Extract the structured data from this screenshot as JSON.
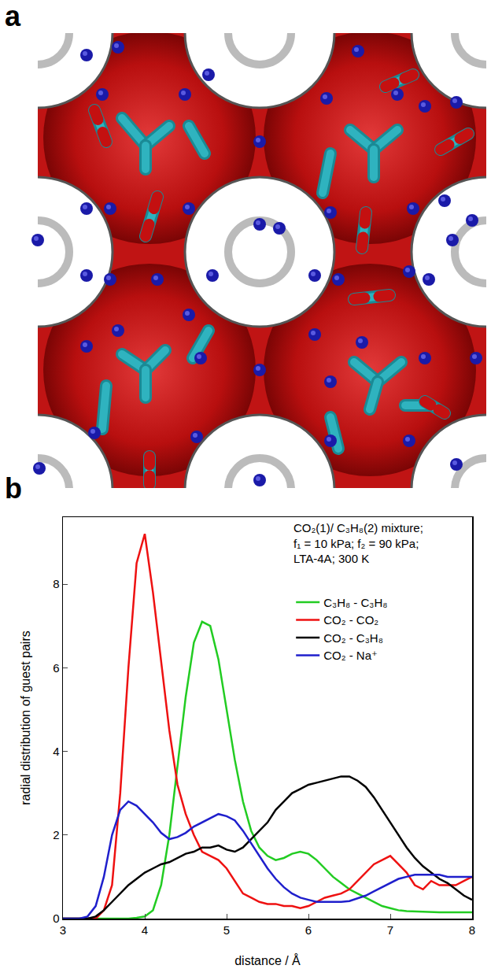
{
  "image_panel": {
    "label": "a"
  },
  "chart_data": {
    "panel_label": "b",
    "type": "line",
    "annotation": [
      "CO₂(1)/ C₃H₈(2) mixture;",
      "f₁ = 10 kPa; f₂ = 90 kPa;",
      "LTA-4A; 300 K"
    ],
    "x_label": "distance / Å",
    "y_label": "radial distribution of guest pairs",
    "xlim": [
      3,
      8
    ],
    "xticks": [
      3,
      4,
      5,
      6,
      7,
      8
    ],
    "ylim": [
      0,
      9.6
    ],
    "yticks": [
      0,
      2,
      4,
      6,
      8
    ],
    "grid": false,
    "legend": "top-right",
    "x": [
      3.0,
      3.1,
      3.2,
      3.3,
      3.4,
      3.5,
      3.6,
      3.7,
      3.8,
      3.9,
      4.0,
      4.1,
      4.2,
      4.3,
      4.4,
      4.5,
      4.6,
      4.7,
      4.8,
      4.9,
      5.0,
      5.1,
      5.2,
      5.3,
      5.4,
      5.5,
      5.6,
      5.7,
      5.8,
      5.9,
      6.0,
      6.1,
      6.2,
      6.3,
      6.4,
      6.5,
      6.6,
      6.7,
      6.8,
      6.9,
      7.0,
      7.1,
      7.2,
      7.3,
      7.4,
      7.5,
      7.6,
      7.7,
      7.8,
      7.9,
      8.0
    ],
    "series": [
      {
        "name": "C₃H₈ - C₃H₈",
        "color": "#22cc22",
        "values": [
          0,
          0,
          0,
          0,
          0,
          0,
          0,
          0,
          0,
          0.02,
          0.05,
          0.2,
          0.8,
          2.0,
          3.6,
          5.3,
          6.6,
          7.1,
          7.0,
          6.2,
          5.0,
          3.8,
          2.8,
          2.1,
          1.7,
          1.5,
          1.4,
          1.45,
          1.55,
          1.6,
          1.55,
          1.4,
          1.2,
          1.0,
          0.85,
          0.7,
          0.6,
          0.5,
          0.4,
          0.3,
          0.25,
          0.2,
          0.18,
          0.17,
          0.16,
          0.15,
          0.15,
          0.15,
          0.15,
          0.15,
          0.15
        ]
      },
      {
        "name": "CO₂ - CO₂",
        "color": "#ee1111",
        "values": [
          0,
          0,
          0,
          0,
          0,
          0.2,
          0.8,
          3.0,
          6.0,
          8.5,
          9.2,
          7.8,
          6.2,
          4.5,
          3.2,
          2.5,
          2.0,
          1.6,
          1.5,
          1.4,
          1.2,
          0.9,
          0.6,
          0.5,
          0.4,
          0.35,
          0.35,
          0.3,
          0.3,
          0.25,
          0.3,
          0.4,
          0.5,
          0.55,
          0.6,
          0.7,
          0.9,
          1.1,
          1.3,
          1.4,
          1.5,
          1.3,
          1.1,
          0.8,
          0.7,
          0.9,
          0.8,
          0.8,
          0.8,
          0.9,
          1.0
        ]
      },
      {
        "name": "CO₂ - C₃H₈",
        "color": "#000000",
        "values": [
          0,
          0,
          0,
          0,
          0.05,
          0.2,
          0.4,
          0.6,
          0.8,
          0.95,
          1.1,
          1.2,
          1.3,
          1.35,
          1.45,
          1.55,
          1.6,
          1.7,
          1.7,
          1.75,
          1.65,
          1.6,
          1.7,
          1.9,
          2.1,
          2.3,
          2.6,
          2.8,
          3.0,
          3.1,
          3.2,
          3.25,
          3.3,
          3.35,
          3.4,
          3.4,
          3.3,
          3.15,
          2.9,
          2.6,
          2.3,
          2.0,
          1.7,
          1.45,
          1.25,
          1.1,
          0.95,
          0.85,
          0.7,
          0.55,
          0.45
        ]
      },
      {
        "name": "CO₂ - Na⁺",
        "color": "#1f1fcc",
        "values": [
          0,
          0,
          0,
          0.05,
          0.3,
          1.0,
          2.0,
          2.6,
          2.8,
          2.7,
          2.5,
          2.3,
          2.05,
          1.9,
          1.95,
          2.05,
          2.2,
          2.3,
          2.4,
          2.5,
          2.45,
          2.35,
          2.1,
          1.8,
          1.5,
          1.2,
          0.95,
          0.75,
          0.6,
          0.5,
          0.45,
          0.4,
          0.4,
          0.4,
          0.4,
          0.42,
          0.48,
          0.55,
          0.65,
          0.75,
          0.85,
          0.95,
          1.0,
          1.05,
          1.05,
          1.05,
          1.05,
          1.0,
          1.0,
          1.0,
          1.0
        ]
      }
    ]
  }
}
